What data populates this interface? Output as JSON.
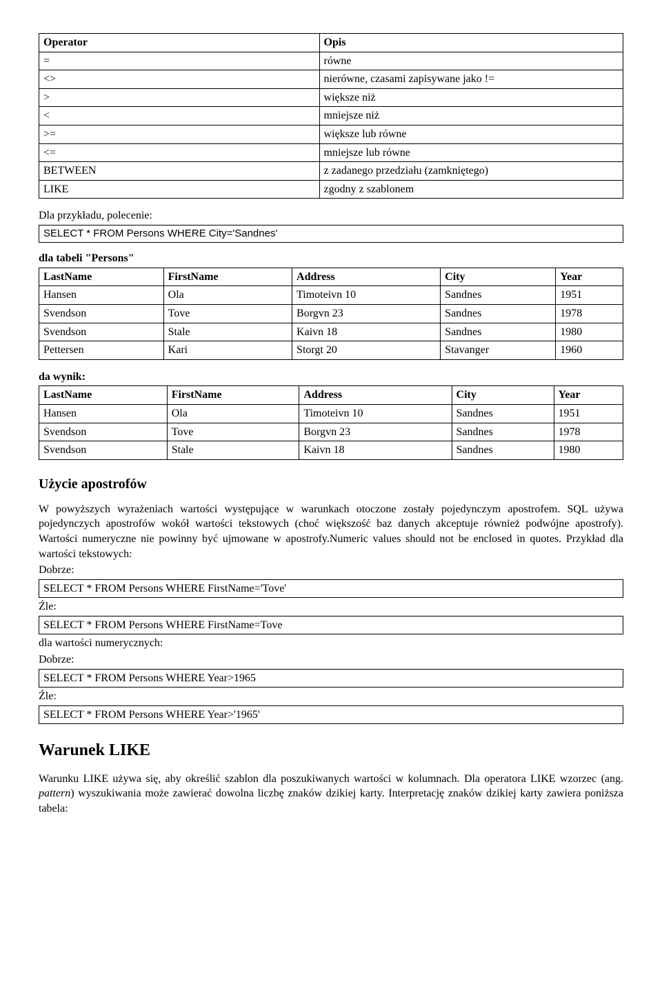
{
  "operators_table": {
    "headers": [
      "Operator",
      "Opis"
    ],
    "rows": [
      [
        "=",
        "równe"
      ],
      [
        "<>",
        "nierówne, czasami zapisywane jako !="
      ],
      [
        ">",
        "większe niż"
      ],
      [
        "<",
        "mniejsze niż"
      ],
      [
        ">=",
        "większe lub równe"
      ],
      [
        "<=",
        "mniejsze lub równe"
      ],
      [
        "BETWEEN",
        "z zadanego przedziału (zamkniętego)"
      ],
      [
        "LIKE",
        "zgodny z szablonem"
      ]
    ]
  },
  "example_intro": "Dla przykładu, polecenie:",
  "example_sql": "SELECT * FROM Persons WHERE City='Sandnes'",
  "persons_label": "dla tabeli \"Persons\"",
  "persons_table": {
    "headers": [
      "LastName",
      "FirstName",
      "Address",
      "City",
      "Year"
    ],
    "rows": [
      [
        "Hansen",
        "Ola",
        "Timoteivn 10",
        "Sandnes",
        "1951"
      ],
      [
        "Svendson",
        "Tove",
        "Borgvn 23",
        "Sandnes",
        "1978"
      ],
      [
        "Svendson",
        "Stale",
        "Kaivn 18",
        "Sandnes",
        "1980"
      ],
      [
        "Pettersen",
        "Kari",
        "Storgt 20",
        "Stavanger",
        "1960"
      ]
    ]
  },
  "result_label": "da wynik:",
  "result_table": {
    "headers": [
      "LastName",
      "FirstName",
      "Address",
      "City",
      "Year"
    ],
    "rows": [
      [
        "Hansen",
        "Ola",
        "Timoteivn 10",
        "Sandnes",
        "1951"
      ],
      [
        "Svendson",
        "Tove",
        "Borgvn 23",
        "Sandnes",
        "1978"
      ],
      [
        "Svendson",
        "Stale",
        "Kaivn 18",
        "Sandnes",
        "1980"
      ]
    ]
  },
  "apostrophes": {
    "title": "Użycie apostrofów",
    "body": "W powyższych wyrażeniach wartości występujące w warunkach otoczone zostały pojedynczym apostrofem. SQL używa pojedynczych apostrofów wokół wartości tekstowych (choć większość baz danych akceptuje również podwójne apostrofy). Wartości numeryczne nie powinny być ujmowane w apostrofy.Numeric values should not be enclosed in quotes. Przykład dla wartości tekstowych:",
    "good_label": "Dobrze:",
    "bad_label": "Źle:",
    "text_good": "SELECT * FROM Persons WHERE FirstName='Tove'",
    "text_bad": "SELECT * FROM Persons WHERE FirstName=Tove",
    "numeric_label": "dla wartości numerycznych:",
    "num_good": "SELECT * FROM Persons WHERE Year>1965",
    "num_bad": "SELECT * FROM Persons WHERE Year>'1965'"
  },
  "like": {
    "title": "Warunek LIKE",
    "body_prefix": "Warunku LIKE używa się, aby określić szablon dla poszukiwanych wartości w kolumnach. Dla operatora LIKE wzorzec (ang. ",
    "italic": "pattern",
    "body_suffix": ") wyszukiwania może zawierać dowolna liczbę znaków dzikiej karty. Interpretację znaków dzikiej karty zawiera poniższa tabela:"
  }
}
